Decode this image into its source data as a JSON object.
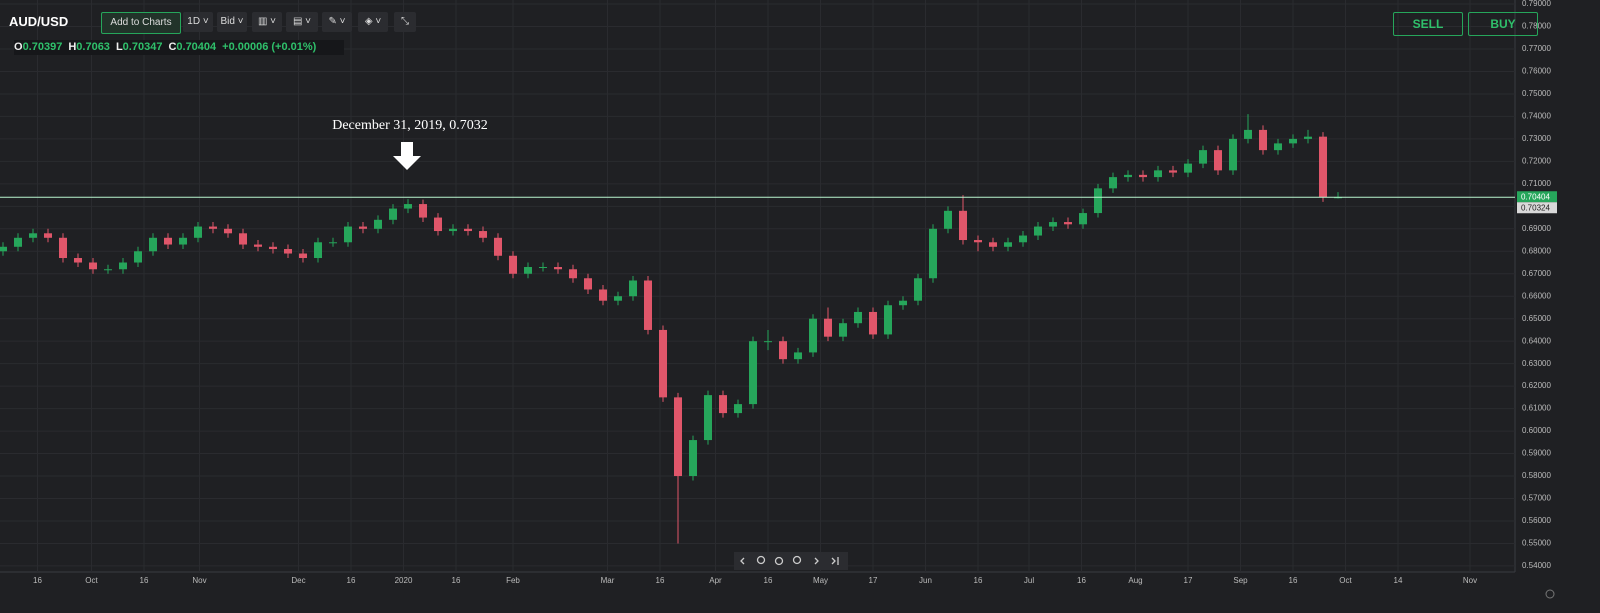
{
  "toolbar": {
    "symbol": "AUD/USD",
    "add_button": "Add to Charts",
    "interval": "1D",
    "price_type": "Bid",
    "sell": "SELL",
    "buy": "BUY",
    "ohlc_letters": [
      "O",
      "H",
      "L",
      "C"
    ],
    "change": "+0.00006 (+0.01%)"
  },
  "chart_data": {
    "type": "candlestick",
    "annotation": "December 31, 2019, 0.7032",
    "secondary_price_label": "0.70324",
    "up_color": "#26a65b",
    "down_color": "#e0566a",
    "price_line_color": "#b9f5d0",
    "grid": true,
    "open": [
      0.68,
      0.682,
      0.686,
      0.688,
      0.686,
      0.677,
      0.675,
      0.672,
      0.672,
      0.675,
      0.68,
      0.686,
      0.683,
      0.686,
      0.691,
      0.69,
      0.688,
      0.683,
      0.682,
      0.681,
      0.679,
      0.677,
      0.684,
      0.684,
      0.691,
      0.69,
      0.694,
      0.699,
      0.701,
      0.695,
      0.689,
      0.69,
      0.689,
      0.686,
      0.678,
      0.67,
      0.673,
      0.673,
      0.672,
      0.668,
      0.663,
      0.658,
      0.66,
      0.667,
      0.645,
      0.615,
      0.58,
      0.596,
      0.616,
      0.608,
      0.612,
      0.64,
      0.64,
      0.632,
      0.635,
      0.65,
      0.642,
      0.648,
      0.653,
      0.643,
      0.656,
      0.658,
      0.668,
      0.69,
      0.698,
      0.685,
      0.684,
      0.682,
      0.684,
      0.687,
      0.691,
      0.693,
      0.692,
      0.697,
      0.708,
      0.713,
      0.714,
      0.713,
      0.716,
      0.715,
      0.719,
      0.725,
      0.716,
      0.73,
      0.734,
      0.725,
      0.728,
      0.73,
      0.731,
      0.70397
    ],
    "high": [
      0.684,
      0.688,
      0.69,
      0.69,
      0.688,
      0.679,
      0.677,
      0.674,
      0.677,
      0.682,
      0.688,
      0.688,
      0.688,
      0.693,
      0.693,
      0.692,
      0.69,
      0.685,
      0.684,
      0.683,
      0.681,
      0.686,
      0.686,
      0.693,
      0.693,
      0.696,
      0.701,
      0.7032,
      0.703,
      0.697,
      0.692,
      0.692,
      0.691,
      0.688,
      0.68,
      0.675,
      0.675,
      0.675,
      0.674,
      0.67,
      0.665,
      0.662,
      0.669,
      0.669,
      0.647,
      0.617,
      0.598,
      0.618,
      0.618,
      0.614,
      0.642,
      0.645,
      0.642,
      0.637,
      0.652,
      0.655,
      0.65,
      0.655,
      0.655,
      0.658,
      0.66,
      0.67,
      0.692,
      0.7,
      0.705,
      0.687,
      0.686,
      0.686,
      0.689,
      0.693,
      0.695,
      0.695,
      0.699,
      0.71,
      0.715,
      0.716,
      0.716,
      0.718,
      0.718,
      0.721,
      0.727,
      0.727,
      0.732,
      0.741,
      0.736,
      0.73,
      0.732,
      0.734,
      0.733,
      0.7063
    ],
    "low": [
      0.678,
      0.68,
      0.684,
      0.684,
      0.675,
      0.673,
      0.67,
      0.67,
      0.67,
      0.673,
      0.678,
      0.681,
      0.681,
      0.684,
      0.688,
      0.686,
      0.681,
      0.68,
      0.679,
      0.677,
      0.675,
      0.675,
      0.682,
      0.682,
      0.688,
      0.688,
      0.692,
      0.697,
      0.693,
      0.687,
      0.687,
      0.687,
      0.684,
      0.676,
      0.668,
      0.668,
      0.671,
      0.67,
      0.666,
      0.661,
      0.656,
      0.656,
      0.658,
      0.643,
      0.613,
      0.55,
      0.578,
      0.594,
      0.606,
      0.606,
      0.61,
      0.636,
      0.63,
      0.63,
      0.633,
      0.64,
      0.64,
      0.646,
      0.641,
      0.641,
      0.654,
      0.656,
      0.666,
      0.688,
      0.683,
      0.68,
      0.68,
      0.68,
      0.682,
      0.685,
      0.689,
      0.69,
      0.69,
      0.695,
      0.706,
      0.711,
      0.711,
      0.711,
      0.713,
      0.713,
      0.717,
      0.714,
      0.714,
      0.728,
      0.723,
      0.723,
      0.726,
      0.728,
      0.702,
      0.70347
    ],
    "close": [
      0.682,
      0.686,
      0.688,
      0.686,
      0.677,
      0.675,
      0.672,
      0.672,
      0.675,
      0.68,
      0.686,
      0.683,
      0.686,
      0.691,
      0.69,
      0.688,
      0.683,
      0.682,
      0.681,
      0.679,
      0.677,
      0.684,
      0.684,
      0.691,
      0.69,
      0.694,
      0.699,
      0.701,
      0.695,
      0.689,
      0.69,
      0.689,
      0.686,
      0.678,
      0.67,
      0.673,
      0.673,
      0.672,
      0.668,
      0.663,
      0.658,
      0.66,
      0.667,
      0.645,
      0.615,
      0.58,
      0.596,
      0.616,
      0.608,
      0.612,
      0.64,
      0.64,
      0.632,
      0.635,
      0.65,
      0.642,
      0.648,
      0.653,
      0.643,
      0.656,
      0.658,
      0.668,
      0.69,
      0.698,
      0.685,
      0.684,
      0.682,
      0.684,
      0.687,
      0.691,
      0.693,
      0.692,
      0.697,
      0.708,
      0.713,
      0.714,
      0.713,
      0.716,
      0.715,
      0.719,
      0.725,
      0.716,
      0.73,
      0.734,
      0.725,
      0.728,
      0.73,
      0.731,
      0.70397,
      0.70404
    ],
    "xlim": [
      -0.2,
      100.8
    ],
    "xticks": [
      {
        "value": 2.3,
        "label": "16"
      },
      {
        "value": 5.9,
        "label": "Oct"
      },
      {
        "value": 9.4,
        "label": "16"
      },
      {
        "value": 13.1,
        "label": "Nov"
      },
      {
        "value": 19.7,
        "label": "Dec"
      },
      {
        "value": 23.2,
        "label": "16"
      },
      {
        "value": 26.7,
        "label": "2020"
      },
      {
        "value": 30.2,
        "label": "16"
      },
      {
        "value": 34,
        "label": "Feb"
      },
      {
        "value": 40.3,
        "label": "Mar"
      },
      {
        "value": 43.8,
        "label": "16"
      },
      {
        "value": 47.5,
        "label": "Apr"
      },
      {
        "value": 51,
        "label": "16"
      },
      {
        "value": 54.5,
        "label": "May"
      },
      {
        "value": 58,
        "label": "17"
      },
      {
        "value": 61.5,
        "label": "Jun"
      },
      {
        "value": 65,
        "label": "16"
      },
      {
        "value": 68.4,
        "label": "Jul"
      },
      {
        "value": 71.9,
        "label": "16"
      },
      {
        "value": 75.5,
        "label": "Aug"
      },
      {
        "value": 79,
        "label": "17"
      },
      {
        "value": 82.5,
        "label": "Sep"
      },
      {
        "value": 86,
        "label": "16"
      },
      {
        "value": 89.5,
        "label": "Oct"
      },
      {
        "value": 93,
        "label": "14"
      },
      {
        "value": 97.8,
        "label": "Nov"
      }
    ],
    "ylim": [
      0.5373,
      0.7918
    ],
    "yticks": [
      {
        "value": 0.54,
        "label": "0.54000"
      },
      {
        "value": 0.55,
        "label": "0.55000"
      },
      {
        "value": 0.56,
        "label": "0.56000"
      },
      {
        "value": 0.57,
        "label": "0.57000"
      },
      {
        "value": 0.58,
        "label": "0.58000"
      },
      {
        "value": 0.59,
        "label": "0.59000"
      },
      {
        "value": 0.6,
        "label": "0.60000"
      },
      {
        "value": 0.61,
        "label": "0.61000"
      },
      {
        "value": 0.62,
        "label": "0.62000"
      },
      {
        "value": 0.63,
        "label": "0.63000"
      },
      {
        "value": 0.64,
        "label": "0.64000"
      },
      {
        "value": 0.65,
        "label": "0.65000"
      },
      {
        "value": 0.66,
        "label": "0.66000"
      },
      {
        "value": 0.67,
        "label": "0.67000"
      },
      {
        "value": 0.68,
        "label": "0.68000"
      },
      {
        "value": 0.69,
        "label": "0.69000"
      },
      {
        "value": 0.7,
        "label": "0.70000"
      },
      {
        "value": 0.71,
        "label": "0.71000"
      },
      {
        "value": 0.72,
        "label": "0.72000"
      },
      {
        "value": 0.73,
        "label": "0.73000"
      },
      {
        "value": 0.74,
        "label": "0.74000"
      },
      {
        "value": 0.75,
        "label": "0.75000"
      },
      {
        "value": 0.76,
        "label": "0.76000"
      },
      {
        "value": 0.77,
        "label": "0.77000"
      },
      {
        "value": 0.78,
        "label": "0.78000"
      },
      {
        "value": 0.79,
        "label": "0.79000"
      }
    ]
  }
}
